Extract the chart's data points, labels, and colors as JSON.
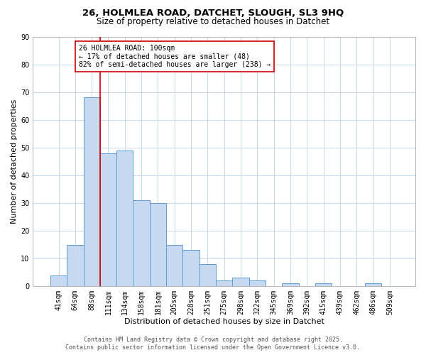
{
  "title": "26, HOLMLEA ROAD, DATCHET, SLOUGH, SL3 9HQ",
  "subtitle": "Size of property relative to detached houses in Datchet",
  "xlabel": "Distribution of detached houses by size in Datchet",
  "ylabel": "Number of detached properties",
  "bin_labels": [
    "41sqm",
    "64sqm",
    "88sqm",
    "111sqm",
    "134sqm",
    "158sqm",
    "181sqm",
    "205sqm",
    "228sqm",
    "251sqm",
    "275sqm",
    "298sqm",
    "322sqm",
    "345sqm",
    "369sqm",
    "392sqm",
    "415sqm",
    "439sqm",
    "462sqm",
    "486sqm",
    "509sqm"
  ],
  "bar_values": [
    4,
    15,
    68,
    48,
    49,
    31,
    30,
    15,
    13,
    8,
    2,
    3,
    2,
    0,
    1,
    0,
    1,
    0,
    0,
    1,
    0
  ],
  "bar_color": "#c6d9f0",
  "bar_edge_color": "#5b9bd5",
  "vline_color": "#cc0000",
  "ylim": [
    0,
    90
  ],
  "yticks": [
    0,
    10,
    20,
    30,
    40,
    50,
    60,
    70,
    80,
    90
  ],
  "annotation_line1": "26 HOLMLEA ROAD: 100sqm",
  "annotation_line2": "← 17% of detached houses are smaller (48)",
  "annotation_line3": "82% of semi-detached houses are larger (238) →",
  "footer_line1": "Contains HM Land Registry data © Crown copyright and database right 2025.",
  "footer_line2": "Contains public sector information licensed under the Open Government Licence v3.0.",
  "bg_color": "#ffffff",
  "grid_color": "#c8d8ec",
  "title_fontsize": 9.5,
  "subtitle_fontsize": 8.5,
  "axis_label_fontsize": 8,
  "tick_fontsize": 7,
  "annotation_fontsize": 7,
  "footer_fontsize": 6
}
